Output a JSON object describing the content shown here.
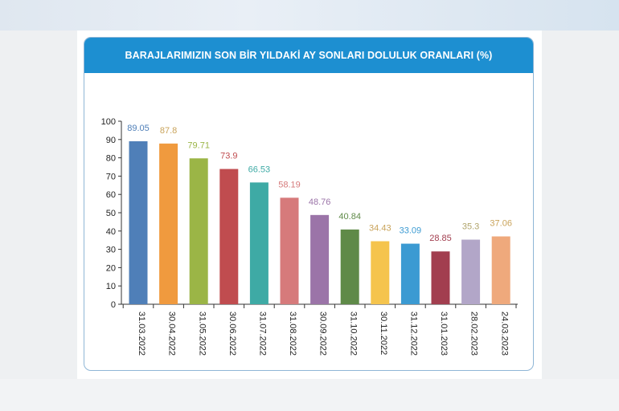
{
  "chart_data": {
    "type": "bar",
    "title": "BARAJLARIMIZIN SON BİR YILDAKİ AY SONLARI DOLULUK ORANLARI (%)",
    "xlabel": "",
    "ylabel": "",
    "ylim": [
      0,
      100
    ],
    "yticks": [
      0,
      10,
      20,
      30,
      40,
      50,
      60,
      70,
      80,
      90,
      100
    ],
    "grid": false,
    "categories": [
      "31.03.2022",
      "30.04.2022",
      "31.05.2022",
      "30.06.2022",
      "31.07.2022",
      "31.08.2022",
      "30.09.2022",
      "31.10.2022",
      "30.11.2022",
      "31.12.2022",
      "31.01.2023",
      "28.02.2023",
      "24.03.2023"
    ],
    "values": [
      89.05,
      87.8,
      79.71,
      73.9,
      66.53,
      58.19,
      48.76,
      40.84,
      34.43,
      33.09,
      28.85,
      35.3,
      37.06
    ],
    "value_labels": [
      "89.05",
      "87.8",
      "79.71",
      "73.9",
      "66.53",
      "58.19",
      "48.76",
      "40.84",
      "34.43",
      "33.09",
      "28.85",
      "35.3",
      "37.06"
    ],
    "bar_colors": [
      "#4f7fb8",
      "#f09a3e",
      "#9bb546",
      "#c04c4f",
      "#3eaaa5",
      "#d67a7b",
      "#9b74a8",
      "#5f8a48",
      "#f5c44d",
      "#3b9ad2",
      "#a23e4f",
      "#b2a6c8",
      "#efa97c"
    ],
    "label_colors": [
      "#4f7fb8",
      "#c9a35a",
      "#9bb546",
      "#c04c4f",
      "#3eaaa5",
      "#d67a7b",
      "#9b74a8",
      "#5f8a48",
      "#c9a35a",
      "#3b9ad2",
      "#a23e4f",
      "#b0a46a",
      "#c9a35a"
    ]
  },
  "colors": {
    "header": "#1d8fd1",
    "card_border": "#8fb6d6",
    "axis": "#333333"
  }
}
